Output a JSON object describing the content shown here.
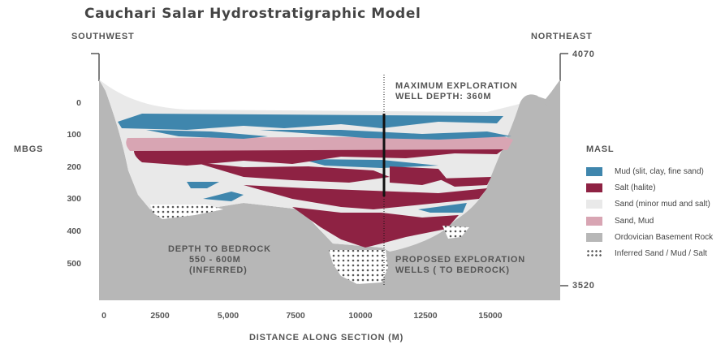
{
  "title": "Cauchari Salar Hydrostratigraphic Model",
  "directions": {
    "left": "SOUTHWEST",
    "right": "NORTHEAST"
  },
  "axes": {
    "left_label": "MBGS",
    "right_label": "MASL",
    "x_label": "DISTANCE ALONG SECTION (M)",
    "depth_ticks": [
      "0",
      "100",
      "200",
      "300",
      "400",
      "500"
    ],
    "distance_ticks": [
      "0",
      "2500",
      "5,000",
      "7500",
      "10000",
      "12500",
      "15000"
    ],
    "elevation_top": "4070",
    "elevation_bottom": "3520"
  },
  "annotations": {
    "max_depth_line1": "MAXIMUM EXPLORATION",
    "max_depth_line2": "WELL DEPTH: 360M",
    "bedrock_line1": "DEPTH TO BEDROCK",
    "bedrock_line2": "550 - 600M",
    "bedrock_line3": "(INFERRED)",
    "proposed_line1": "PROPOSED EXPLORATION",
    "proposed_line2": "WELLS ( TO BEDROCK)"
  },
  "legend": [
    {
      "label": "Mud (slit, clay, fine sand)",
      "color": "#3f86ad",
      "pattern": "solid"
    },
    {
      "label": "Salt (halite)",
      "color": "#8e2243",
      "pattern": "solid"
    },
    {
      "label": "Sand (minor mud and salt)",
      "color": "#e9e9e9",
      "pattern": "solid"
    },
    {
      "label": "Sand, Mud",
      "color": "#d8a5b3",
      "pattern": "solid"
    },
    {
      "label": "Ordovician Basement Rock",
      "color": "#b7b7b7",
      "pattern": "solid"
    },
    {
      "label": "Inferred Sand / Mud / Salt",
      "color": "#555555",
      "pattern": "dots"
    }
  ]
}
